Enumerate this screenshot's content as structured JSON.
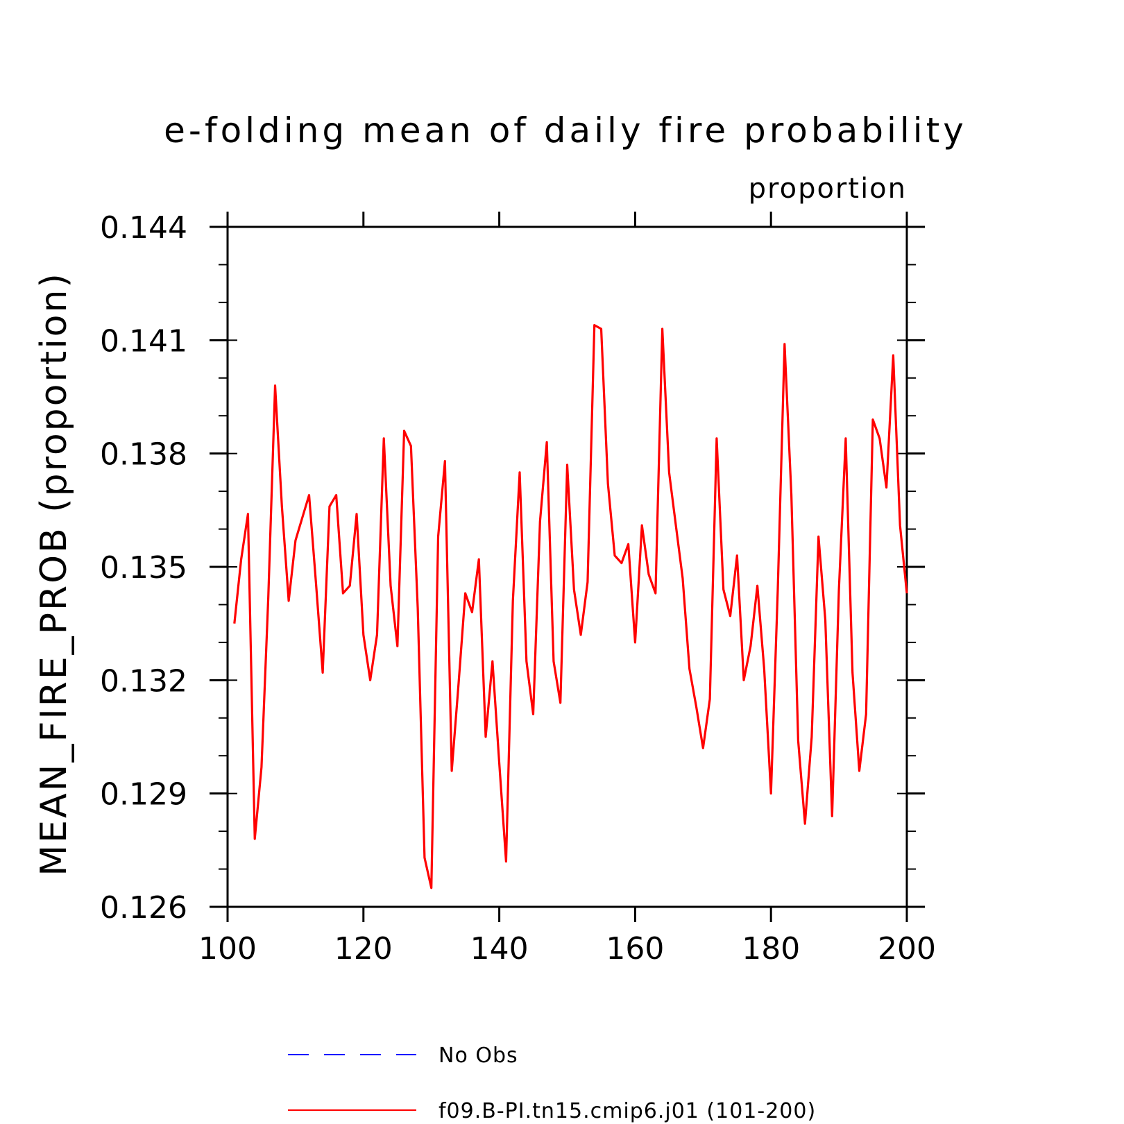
{
  "chart_data": {
    "type": "line",
    "title": "e-folding mean of daily fire probability",
    "units_label": "proportion",
    "ylabel": "MEAN_FIRE_PROB (proportion)",
    "xlabel": "",
    "xlim": [
      100,
      200
    ],
    "ylim": [
      0.126,
      0.144
    ],
    "x_ticks": [
      "100",
      "120",
      "140",
      "160",
      "180",
      "200"
    ],
    "y_ticks": [
      "0.126",
      "0.129",
      "0.132",
      "0.135",
      "0.138",
      "0.141",
      "0.144"
    ],
    "grid": false,
    "legend_position": "bottom",
    "legend": [
      {
        "name": "No Obs",
        "color": "#0000ff",
        "style": "dashed"
      },
      {
        "name": "f09.B-PI.tn15.cmip6.j01 (101-200)",
        "color": "#ff0000",
        "style": "solid"
      }
    ],
    "series": [
      {
        "name": "f09.B-PI.tn15.cmip6.j01 (101-200)",
        "color": "#ff0000",
        "x": [
          101,
          102,
          103,
          104,
          105,
          106,
          107,
          108,
          109,
          110,
          111,
          112,
          113,
          114,
          115,
          116,
          117,
          118,
          119,
          120,
          121,
          122,
          123,
          124,
          125,
          126,
          127,
          128,
          129,
          130,
          131,
          132,
          133,
          134,
          135,
          136,
          137,
          138,
          139,
          140,
          141,
          142,
          143,
          144,
          145,
          146,
          147,
          148,
          149,
          150,
          151,
          152,
          153,
          154,
          155,
          156,
          157,
          158,
          159,
          160,
          161,
          162,
          163,
          164,
          165,
          166,
          167,
          168,
          169,
          170,
          171,
          172,
          173,
          174,
          175,
          176,
          177,
          178,
          179,
          180,
          181,
          182,
          183,
          184,
          185,
          186,
          187,
          188,
          189,
          190,
          191,
          192,
          193,
          194,
          195,
          196,
          197,
          198,
          199,
          200
        ],
        "y": [
          0.1335,
          0.1352,
          0.1364,
          0.1278,
          0.1297,
          0.1342,
          0.1398,
          0.1366,
          0.1341,
          0.1357,
          0.1363,
          0.1369,
          0.1346,
          0.1322,
          0.1366,
          0.1369,
          0.1343,
          0.1345,
          0.1364,
          0.1332,
          0.132,
          0.1332,
          0.1384,
          0.1345,
          0.1329,
          0.1386,
          0.1382,
          0.1339,
          0.1273,
          0.1265,
          0.1358,
          0.1378,
          0.1296,
          0.1319,
          0.1343,
          0.1338,
          0.1352,
          0.1305,
          0.1325,
          0.1298,
          0.1272,
          0.1341,
          0.1375,
          0.1325,
          0.1311,
          0.1362,
          0.1383,
          0.1325,
          0.1314,
          0.1377,
          0.1344,
          0.1332,
          0.1346,
          0.1414,
          0.1413,
          0.1372,
          0.1353,
          0.1351,
          0.1356,
          0.133,
          0.1361,
          0.1348,
          0.1343,
          0.1413,
          0.1375,
          0.1361,
          0.1347,
          0.1323,
          0.1313,
          0.1302,
          0.1315,
          0.1384,
          0.1344,
          0.1337,
          0.1353,
          0.132,
          0.1329,
          0.1345,
          0.1323,
          0.129,
          0.1344,
          0.1409,
          0.1369,
          0.1304,
          0.1282,
          0.1305,
          0.1358,
          0.1336,
          0.1284,
          0.1344,
          0.1384,
          0.1322,
          0.1296,
          0.1311,
          0.1389,
          0.1384,
          0.1371,
          0.1406,
          0.1361,
          0.1343
        ]
      }
    ]
  }
}
